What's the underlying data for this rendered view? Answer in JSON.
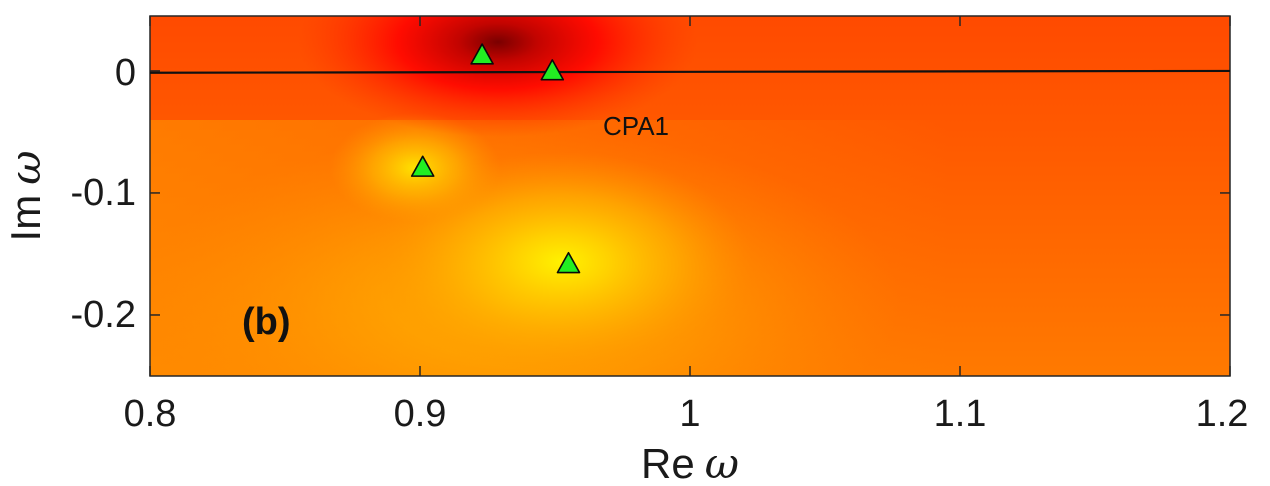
{
  "chart_data": {
    "type": "heatmap",
    "title": "",
    "xlabel": "Re",
    "xlabel_symbol": "ω",
    "ylabel": "Im",
    "ylabel_symbol": "ω",
    "xlim": [
      0.8,
      1.2
    ],
    "ylim": [
      -0.25,
      0.045
    ],
    "x_ticks": [
      0.8,
      0.9,
      1.0,
      1.1,
      1.2
    ],
    "x_tick_labels": [
      "0.8",
      "0.9",
      "1",
      "1.1",
      "1.2"
    ],
    "y_ticks": [
      0,
      -0.1,
      -0.2
    ],
    "y_tick_labels": [
      "0",
      "-0.1",
      "-0.2"
    ],
    "grid": false,
    "panel_label": "(b)",
    "annotations": [
      {
        "text": "CPA1",
        "x": 0.98,
        "y": -0.045
      }
    ],
    "markers": {
      "shape": "triangle",
      "color": "#22ee22",
      "points": [
        {
          "x": 0.923,
          "y": 0.013
        },
        {
          "x": 0.949,
          "y": 0.0
        },
        {
          "x": 0.901,
          "y": -0.079
        },
        {
          "x": 0.955,
          "y": -0.158
        }
      ]
    },
    "line": {
      "color": "#111111",
      "points": [
        [
          0.8,
          -0.0015
        ],
        [
          1.2,
          0.0
        ]
      ]
    },
    "colormap": {
      "low": "#ff3300",
      "mid": "#ff8800",
      "high": "#ffee00",
      "dark": "#8a0000"
    }
  }
}
